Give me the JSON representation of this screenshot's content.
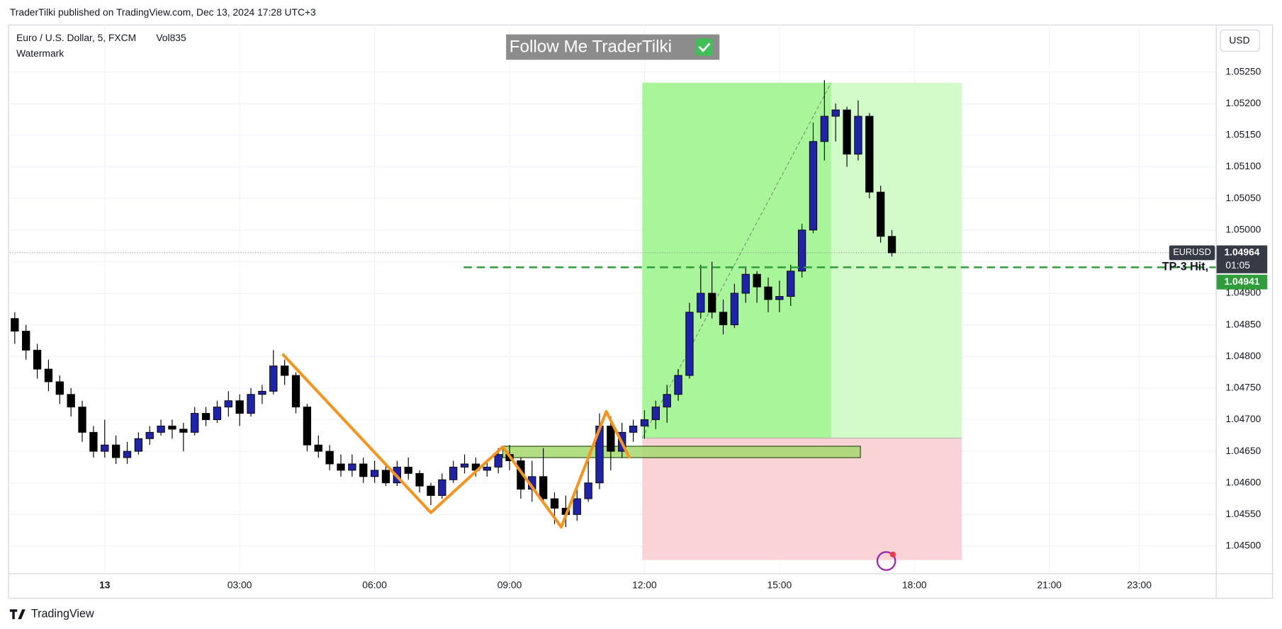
{
  "header": {
    "published": "TraderTilki published on TradingView.com, Dec 13, 2024 17:28 UTC+3"
  },
  "legend": {
    "symbol": "Euro / U.S. Dollar, 5, FXCM",
    "volume": "Vol835",
    "indicator": "Watermark"
  },
  "watermark": "Follow Me TraderTilki",
  "currency_button": "USD",
  "footer": {
    "brand": "TradingView"
  },
  "chart_data": {
    "type": "candlestick",
    "x": [
      -2.0,
      -1.75,
      -1.5,
      -1.25,
      -1.0,
      -0.75,
      -0.5,
      -0.25,
      0,
      0.25,
      0.5,
      0.75,
      1.0,
      1.25,
      1.5,
      1.75,
      2.0,
      2.25,
      2.5,
      2.75,
      3.0,
      3.25,
      3.5,
      3.75,
      4.0,
      4.25,
      4.5,
      4.75,
      5.0,
      5.25,
      5.5,
      5.75,
      6.0,
      6.25,
      6.5,
      6.75,
      7.0,
      7.25,
      7.5,
      7.75,
      8.0,
      8.25,
      8.5,
      8.75,
      9.0,
      9.25,
      9.5,
      9.75,
      10.0,
      10.25,
      10.5,
      10.75,
      11.0,
      11.25,
      11.5,
      11.75,
      12.0,
      12.25,
      12.5,
      12.75,
      13.0,
      13.25,
      13.5,
      13.75,
      14.0,
      14.25,
      14.5,
      14.75,
      15.0,
      15.25,
      15.5,
      15.75,
      16.0,
      16.25,
      16.5,
      16.75,
      17.0,
      17.25,
      17.5
    ],
    "open": [
      1.0486,
      1.0484,
      1.0481,
      1.0478,
      1.0476,
      1.0474,
      1.0472,
      1.0468,
      1.0465,
      1.0466,
      1.0464,
      1.0465,
      1.0467,
      1.0468,
      1.0469,
      1.04685,
      1.0468,
      1.0471,
      1.047,
      1.0472,
      1.0473,
      1.0471,
      1.0474,
      1.04745,
      1.04785,
      1.0477,
      1.0472,
      1.0466,
      1.0465,
      1.0463,
      1.0462,
      1.0463,
      1.0461,
      1.0462,
      1.046,
      1.04625,
      1.04615,
      1.04595,
      1.0458,
      1.04605,
      1.04625,
      1.0463,
      1.0462,
      1.04625,
      1.04645,
      1.04635,
      1.0459,
      1.0461,
      1.04575,
      1.0456,
      1.0455,
      1.04575,
      1.046,
      1.0469,
      1.0465,
      1.0468,
      1.0469,
      1.047,
      1.0472,
      1.0474,
      1.0477,
      1.0487,
      1.049,
      1.0487,
      1.0485,
      1.049,
      1.0493,
      1.0491,
      1.0489,
      1.04895,
      1.04935,
      1.05,
      1.0514,
      1.0518,
      1.0519,
      1.0512,
      1.0518,
      1.0506,
      1.0499
    ],
    "high": [
      1.0487,
      1.0485,
      1.0482,
      1.04795,
      1.0477,
      1.0475,
      1.0473,
      1.0469,
      1.047,
      1.04675,
      1.04665,
      1.0468,
      1.0469,
      1.047,
      1.047,
      1.04695,
      1.0472,
      1.0472,
      1.0473,
      1.04745,
      1.0474,
      1.0475,
      1.04755,
      1.0481,
      1.04795,
      1.04775,
      1.04725,
      1.04675,
      1.0466,
      1.04645,
      1.04645,
      1.0464,
      1.04635,
      1.0463,
      1.04635,
      1.0464,
      1.0462,
      1.046,
      1.04615,
      1.04635,
      1.04645,
      1.0464,
      1.04635,
      1.04655,
      1.0466,
      1.0464,
      1.04635,
      1.04655,
      1.04585,
      1.0458,
      1.0459,
      1.0464,
      1.0471,
      1.04705,
      1.04695,
      1.047,
      1.04715,
      1.0473,
      1.04755,
      1.0478,
      1.04885,
      1.04945,
      1.0495,
      1.0489,
      1.04915,
      1.0494,
      1.04935,
      1.04925,
      1.0492,
      1.04945,
      1.0501,
      1.0517,
      1.05237,
      1.052,
      1.05195,
      1.05205,
      1.05185,
      1.0507,
      1.05
    ],
    "low": [
      1.0482,
      1.04795,
      1.04765,
      1.04745,
      1.04725,
      1.04705,
      1.04665,
      1.0464,
      1.0464,
      1.0463,
      1.0463,
      1.04645,
      1.0466,
      1.04675,
      1.0467,
      1.0465,
      1.04675,
      1.0469,
      1.04695,
      1.04705,
      1.0469,
      1.04705,
      1.04725,
      1.0474,
      1.04755,
      1.0471,
      1.0465,
      1.0464,
      1.0462,
      1.0461,
      1.0461,
      1.046,
      1.046,
      1.04595,
      1.04595,
      1.04605,
      1.04585,
      1.04565,
      1.04575,
      1.046,
      1.04615,
      1.0461,
      1.0461,
      1.04615,
      1.0462,
      1.04575,
      1.0457,
      1.0457,
      1.04535,
      1.0453,
      1.0454,
      1.0457,
      1.0459,
      1.0462,
      1.0464,
      1.04665,
      1.0467,
      1.04685,
      1.04695,
      1.0473,
      1.04765,
      1.0486,
      1.0486,
      1.04835,
      1.04845,
      1.04885,
      1.04885,
      1.0487,
      1.0487,
      1.0488,
      1.04925,
      1.04995,
      1.0511,
      1.0514,
      1.051,
      1.0511,
      1.0505,
      1.0498,
      1.04958
    ],
    "close": [
      1.0484,
      1.0481,
      1.0478,
      1.0476,
      1.0474,
      1.0472,
      1.0468,
      1.0465,
      1.0466,
      1.0464,
      1.0465,
      1.0467,
      1.0468,
      1.0469,
      1.04685,
      1.0468,
      1.0471,
      1.047,
      1.0472,
      1.0473,
      1.0471,
      1.0474,
      1.04745,
      1.04785,
      1.0477,
      1.0472,
      1.0466,
      1.0465,
      1.0463,
      1.0462,
      1.0463,
      1.0461,
      1.0462,
      1.046,
      1.04625,
      1.04615,
      1.04595,
      1.0458,
      1.04605,
      1.04625,
      1.0463,
      1.0462,
      1.04625,
      1.04645,
      1.04635,
      1.0459,
      1.0461,
      1.04575,
      1.0456,
      1.0455,
      1.04575,
      1.046,
      1.0469,
      1.0465,
      1.0468,
      1.0469,
      1.047,
      1.0472,
      1.0474,
      1.0477,
      1.0487,
      1.049,
      1.0487,
      1.0485,
      1.049,
      1.0493,
      1.0491,
      1.0489,
      1.04895,
      1.04935,
      1.05,
      1.0514,
      1.0518,
      1.0519,
      1.0512,
      1.0518,
      1.0506,
      1.0499,
      1.04964
    ],
    "up_color": "#1f23a8",
    "down_color": "#000000",
    "xlim": [
      -2.11,
      24.7
    ],
    "ylim": [
      1.04457,
      1.05325
    ],
    "xticks": [
      {
        "value": 0,
        "label": "13"
      },
      {
        "value": 3,
        "label": "03:00"
      },
      {
        "value": 6,
        "label": "06:00"
      },
      {
        "value": 9,
        "label": "09:00"
      },
      {
        "value": 12,
        "label": "12:00"
      },
      {
        "value": 15,
        "label": "15:00"
      },
      {
        "value": 18,
        "label": "18:00"
      },
      {
        "value": 21,
        "label": "21:00"
      },
      {
        "value": 23,
        "label": "23:00"
      }
    ],
    "yticks": [
      {
        "value": 1.045,
        "label": "1.04500"
      },
      {
        "value": 1.0455,
        "label": "1.04550"
      },
      {
        "value": 1.046,
        "label": "1.04600"
      },
      {
        "value": 1.0465,
        "label": "1.04650"
      },
      {
        "value": 1.047,
        "label": "1.04700"
      },
      {
        "value": 1.0475,
        "label": "1.04750"
      },
      {
        "value": 1.048,
        "label": "1.04800"
      },
      {
        "value": 1.0485,
        "label": "1.04850"
      },
      {
        "value": 1.049,
        "label": "1.04900"
      },
      {
        "value": 1.0495,
        "label": "1.04950"
      },
      {
        "value": 1.05,
        "label": "1.05000"
      },
      {
        "value": 1.0505,
        "label": "1.05050"
      },
      {
        "value": 1.051,
        "label": "1.05100"
      },
      {
        "value": 1.0515,
        "label": "1.05150"
      },
      {
        "value": 1.052,
        "label": "1.05200"
      },
      {
        "value": 1.0525,
        "label": "1.05250"
      }
    ],
    "grid": true,
    "last_price": {
      "symbol": "EURUSD",
      "value": 1.04964,
      "countdown": "01:05"
    },
    "tp_line": {
      "label": "TP-3 Hit,",
      "value": 1.04941,
      "start": 7.98,
      "color": "#2e9d3a"
    },
    "position": {
      "start": 11.95,
      "filled_until": 16.15,
      "end": 19.05,
      "entry": 1.04671,
      "target": 1.05233,
      "stop": 1.04478
    },
    "zigzag": {
      "x": [
        3.95,
        7.25,
        8.85,
        10.15,
        11.15,
        11.67
      ],
      "values": [
        1.04804,
        1.04553,
        1.04657,
        1.0453,
        1.04713,
        1.04639
      ],
      "color": "#f7941d"
    },
    "zone": {
      "x": [
        8.85,
        16.8
      ],
      "values": [
        1.04658,
        1.0464
      ]
    }
  }
}
